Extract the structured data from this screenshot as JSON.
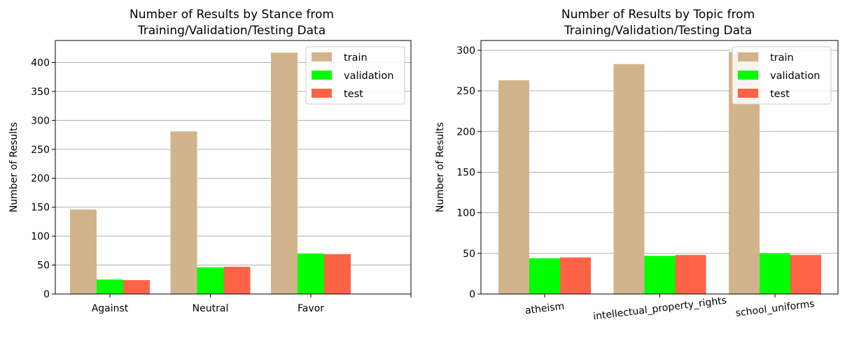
{
  "colors": {
    "train": "#d2b48c",
    "validation": "#00ff00",
    "test": "#ff6347",
    "grid": "#b0b0b0"
  },
  "chart_data": [
    {
      "type": "bar",
      "title": "Number of Results by Stance from\nTraining/Validation/Testing Data",
      "xlabel": "",
      "ylabel": "Number of Results",
      "categories": [
        "Against",
        "Neutral",
        "Favor"
      ],
      "extra_xtick": "",
      "series": [
        {
          "name": "train",
          "values": [
            146,
            281,
            417
          ]
        },
        {
          "name": "validation",
          "values": [
            25,
            46,
            70
          ]
        },
        {
          "name": "test",
          "values": [
            24,
            47,
            69
          ]
        }
      ],
      "ylim": [
        0,
        438
      ],
      "yticks": [
        0,
        50,
        100,
        150,
        200,
        250,
        300,
        350,
        400
      ],
      "grid": "y",
      "legend": "top-right"
    },
    {
      "type": "bar",
      "title": "Number of Results by Topic from\nTraining/Validation/Testing Data",
      "xlabel": "",
      "ylabel": "Number of Results",
      "categories": [
        "atheism",
        "intellectual_property_rights",
        "school_uniforms"
      ],
      "series": [
        {
          "name": "train",
          "values": [
            263,
            283,
            298
          ]
        },
        {
          "name": "validation",
          "values": [
            44,
            47,
            50
          ]
        },
        {
          "name": "test",
          "values": [
            45,
            48,
            48
          ]
        }
      ],
      "ylim": [
        0,
        312
      ],
      "yticks": [
        0,
        50,
        100,
        150,
        200,
        250,
        300
      ],
      "grid": "y",
      "legend": "top-right"
    }
  ]
}
